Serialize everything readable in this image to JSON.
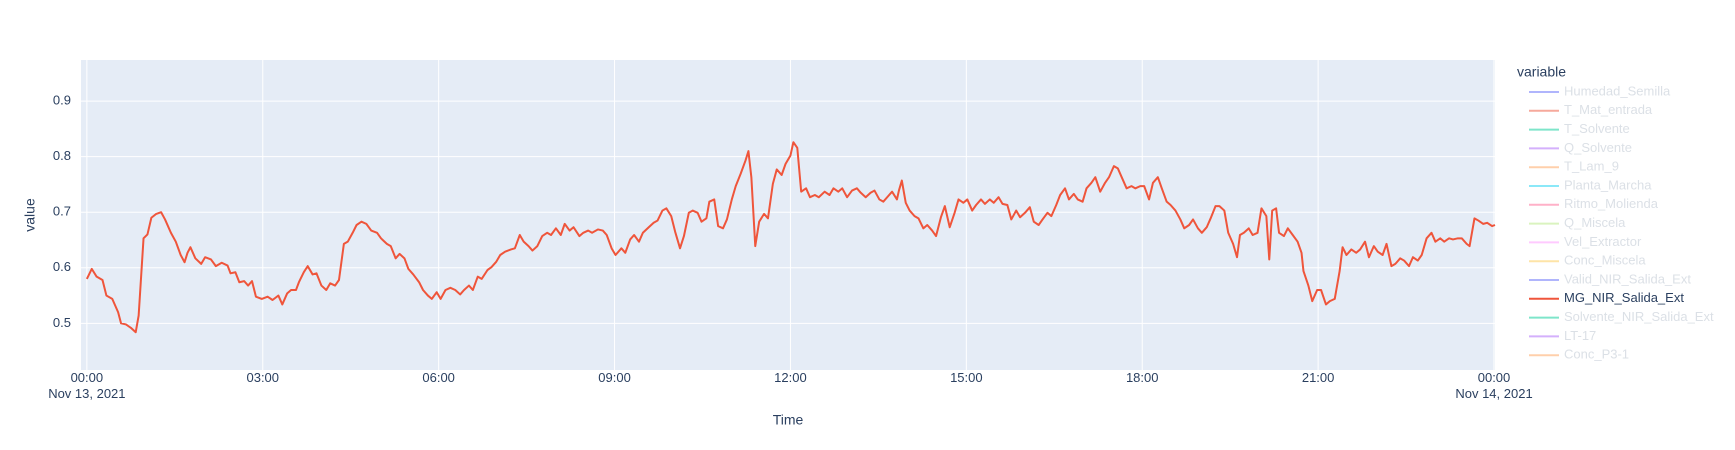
{
  "chart_data": {
    "type": "line",
    "x_label": "Time",
    "y_label": "value",
    "legend_title": "variable",
    "xlim": [
      "2021-11-12 23:54",
      "2021-11-14 00:01"
    ],
    "ylim": [
      0.416,
      0.974
    ],
    "yticks": [
      0.5,
      0.6,
      0.7,
      0.8,
      0.9
    ],
    "xticks": [
      {
        "value": "2021-11-13 00:00",
        "label": "00:00\nNov 13, 2021"
      },
      {
        "value": "2021-11-13 03:00",
        "label": "03:00"
      },
      {
        "value": "2021-11-13 06:00",
        "label": "06:00"
      },
      {
        "value": "2021-11-13 09:00",
        "label": "09:00"
      },
      {
        "value": "2021-11-13 12:00",
        "label": "12:00"
      },
      {
        "value": "2021-11-13 15:00",
        "label": "15:00"
      },
      {
        "value": "2021-11-13 18:00",
        "label": "18:00"
      },
      {
        "value": "2021-11-13 21:00",
        "label": "21:00"
      },
      {
        "value": "2021-11-14 00:00",
        "label": "00:00\nNov 14, 2021"
      }
    ],
    "grid": true,
    "x": [
      "2021-11-13 00:00",
      "2021-11-13 00:05",
      "2021-11-13 00:10",
      "2021-11-13 00:16",
      "2021-11-13 00:20",
      "2021-11-13 00:26",
      "2021-11-13 00:32",
      "2021-11-13 00:35",
      "2021-11-13 00:40",
      "2021-11-13 00:45",
      "2021-11-13 00:50",
      "2021-11-13 00:53",
      "2021-11-13 00:58",
      "2021-11-13 01:02",
      "2021-11-13 01:06",
      "2021-11-13 01:11",
      "2021-11-13 01:16",
      "2021-11-13 01:20",
      "2021-11-13 01:26",
      "2021-11-13 01:31",
      "2021-11-13 01:36",
      "2021-11-13 01:40",
      "2021-11-13 01:43",
      "2021-11-13 01:46",
      "2021-11-13 01:51",
      "2021-11-13 01:57",
      "2021-11-13 02:01",
      "2021-11-13 02:07",
      "2021-11-13 02:12",
      "2021-11-13 02:18",
      "2021-11-13 02:24",
      "2021-11-13 02:27",
      "2021-11-13 02:32",
      "2021-11-13 02:36",
      "2021-11-13 02:41",
      "2021-11-13 02:45",
      "2021-11-13 02:49",
      "2021-11-13 02:53",
      "2021-11-13 02:59",
      "2021-11-13 03:05",
      "2021-11-13 03:10",
      "2021-11-13 03:16",
      "2021-11-13 03:20",
      "2021-11-13 03:25",
      "2021-11-13 03:29",
      "2021-11-13 03:34",
      "2021-11-13 03:37",
      "2021-11-13 03:42",
      "2021-11-13 03:46",
      "2021-11-13 03:51",
      "2021-11-13 03:55",
      "2021-11-13 04:00",
      "2021-11-13 04:05",
      "2021-11-13 04:09",
      "2021-11-13 04:14",
      "2021-11-13 04:18",
      "2021-11-13 04:23",
      "2021-11-13 04:27",
      "2021-11-13 04:32",
      "2021-11-13 04:36",
      "2021-11-13 04:41",
      "2021-11-13 04:46",
      "2021-11-13 04:51",
      "2021-11-13 04:57",
      "2021-11-13 05:01",
      "2021-11-13 05:07",
      "2021-11-13 05:11",
      "2021-11-13 05:16",
      "2021-11-13 05:20",
      "2021-11-13 05:25",
      "2021-11-13 05:29",
      "2021-11-13 05:34",
      "2021-11-13 05:40",
      "2021-11-13 05:44",
      "2021-11-13 05:49",
      "2021-11-13 05:53",
      "2021-11-13 05:58",
      "2021-11-13 06:02",
      "2021-11-13 06:07",
      "2021-11-13 06:12",
      "2021-11-13 06:17",
      "2021-11-13 06:22",
      "2021-11-13 06:26",
      "2021-11-13 06:31",
      "2021-11-13 06:35",
      "2021-11-13 06:40",
      "2021-11-13 06:44",
      "2021-11-13 06:50",
      "2021-11-13 06:54",
      "2021-11-13 06:59",
      "2021-11-13 07:03",
      "2021-11-13 07:08",
      "2021-11-13 07:14",
      "2021-11-13 07:18",
      "2021-11-13 07:23",
      "2021-11-13 07:27",
      "2021-11-13 07:32",
      "2021-11-13 07:36",
      "2021-11-13 07:41",
      "2021-11-13 07:46",
      "2021-11-13 07:51",
      "2021-11-13 07:55",
      "2021-11-13 08:00",
      "2021-11-13 08:05",
      "2021-11-13 08:09",
      "2021-11-13 08:14",
      "2021-11-13 08:18",
      "2021-11-13 08:24",
      "2021-11-13 08:28",
      "2021-11-13 08:33",
      "2021-11-13 08:37",
      "2021-11-13 08:43",
      "2021-11-13 08:48",
      "2021-11-13 08:52",
      "2021-11-13 08:57",
      "2021-11-13 09:01",
      "2021-11-13 09:07",
      "2021-11-13 09:11",
      "2021-11-13 09:16",
      "2021-11-13 09:20",
      "2021-11-13 09:25",
      "2021-11-13 09:29",
      "2021-11-13 09:35",
      "2021-11-13 09:40",
      "2021-11-13 09:44",
      "2021-11-13 09:49",
      "2021-11-13 09:53",
      "2021-11-13 09:58",
      "2021-11-13 10:02",
      "2021-11-13 10:07",
      "2021-11-13 10:11",
      "2021-11-13 10:16",
      "2021-11-13 10:20",
      "2021-11-13 10:25",
      "2021-11-13 10:29",
      "2021-11-13 10:34",
      "2021-11-13 10:37",
      "2021-11-13 10:42",
      "2021-11-13 10:46",
      "2021-11-13 10:51",
      "2021-11-13 10:55",
      "2021-11-13 11:00",
      "2021-11-13 11:04",
      "2021-11-13 11:09",
      "2021-11-13 11:14",
      "2021-11-13 11:17",
      "2021-11-13 11:20",
      "2021-11-13 11:24",
      "2021-11-13 11:28",
      "2021-11-13 11:33",
      "2021-11-13 11:37",
      "2021-11-13 11:42",
      "2021-11-13 11:46",
      "2021-11-13 11:51",
      "2021-11-13 11:55",
      "2021-11-13 12:00",
      "2021-11-13 12:03",
      "2021-11-13 12:07",
      "2021-11-13 12:11",
      "2021-11-13 12:16",
      "2021-11-13 12:20",
      "2021-11-13 12:25",
      "2021-11-13 12:29",
      "2021-11-13 12:35",
      "2021-11-13 12:40",
      "2021-11-13 12:44",
      "2021-11-13 12:49",
      "2021-11-13 12:53",
      "2021-11-13 12:58",
      "2021-11-13 13:03",
      "2021-11-13 13:08",
      "2021-11-13 13:12",
      "2021-11-13 13:17",
      "2021-11-13 13:22",
      "2021-11-13 13:26",
      "2021-11-13 13:31",
      "2021-11-13 13:35",
      "2021-11-13 13:40",
      "2021-11-13 13:44",
      "2021-11-13 13:49",
      "2021-11-13 13:51",
      "2021-11-13 13:54",
      "2021-11-13 13:58",
      "2021-11-13 14:02",
      "2021-11-13 14:07",
      "2021-11-13 14:11",
      "2021-11-13 14:16",
      "2021-11-13 14:20",
      "2021-11-13 14:25",
      "2021-11-13 14:29",
      "2021-11-13 14:34",
      "2021-11-13 14:38",
      "2021-11-13 14:43",
      "2021-11-13 14:48",
      "2021-11-13 14:52",
      "2021-11-13 14:57",
      "2021-11-13 15:01",
      "2021-11-13 15:06",
      "2021-11-13 15:10",
      "2021-11-13 15:15",
      "2021-11-13 15:19",
      "2021-11-13 15:24",
      "2021-11-13 15:28",
      "2021-11-13 15:33",
      "2021-11-13 15:37",
      "2021-11-13 15:42",
      "2021-11-13 15:46",
      "2021-11-13 15:51",
      "2021-11-13 15:55",
      "2021-11-13 16:00",
      "2021-11-13 16:05",
      "2021-11-13 16:09",
      "2021-11-13 16:14",
      "2021-11-13 16:18",
      "2021-11-13 16:23",
      "2021-11-13 16:27",
      "2021-11-13 16:32",
      "2021-11-13 16:36",
      "2021-11-13 16:41",
      "2021-11-13 16:45",
      "2021-11-13 16:50",
      "2021-11-13 16:54",
      "2021-11-13 16:59",
      "2021-11-13 17:03",
      "2021-11-13 17:08",
      "2021-11-13 17:12",
      "2021-11-13 17:17",
      "2021-11-13 17:22",
      "2021-11-13 17:26",
      "2021-11-13 17:31",
      "2021-11-13 17:35",
      "2021-11-13 17:40",
      "2021-11-13 17:44",
      "2021-11-13 17:49",
      "2021-11-13 17:53",
      "2021-11-13 17:58",
      "2021-11-13 18:02",
      "2021-11-13 18:07",
      "2021-11-13 18:11",
      "2021-11-13 18:16",
      "2021-11-13 18:20",
      "2021-11-13 18:25",
      "2021-11-13 18:29",
      "2021-11-13 18:34",
      "2021-11-13 18:39",
      "2021-11-13 18:43",
      "2021-11-13 18:48",
      "2021-11-13 18:52",
      "2021-11-13 18:57",
      "2021-11-13 19:01",
      "2021-11-13 19:06",
      "2021-11-13 19:10",
      "2021-11-13 19:15",
      "2021-11-13 19:19",
      "2021-11-13 19:24",
      "2021-11-13 19:28",
      "2021-11-13 19:33",
      "2021-11-13 19:37",
      "2021-11-13 19:40",
      "2021-11-13 19:44",
      "2021-11-13 19:49",
      "2021-11-13 19:53",
      "2021-11-13 19:58",
      "2021-11-13 20:02",
      "2021-11-13 20:07",
      "2021-11-13 20:10",
      "2021-11-13 20:13",
      "2021-11-13 20:17",
      "2021-11-13 20:20",
      "2021-11-13 20:25",
      "2021-11-13 20:29",
      "2021-11-13 20:34",
      "2021-11-13 20:39",
      "2021-11-13 20:43",
      "2021-11-13 20:45",
      "2021-11-13 20:50",
      "2021-11-13 20:54",
      "2021-11-13 20:59",
      "2021-11-13 21:03",
      "2021-11-13 21:08",
      "2021-11-13 21:12",
      "2021-11-13 21:17",
      "2021-11-13 21:22",
      "2021-11-13 21:25",
      "2021-11-13 21:29",
      "2021-11-13 21:34",
      "2021-11-13 21:39",
      "2021-11-13 21:43",
      "2021-11-13 21:48",
      "2021-11-13 21:52",
      "2021-11-13 21:57",
      "2021-11-13 22:01",
      "2021-11-13 22:06",
      "2021-11-13 22:10",
      "2021-11-13 22:15",
      "2021-11-13 22:19",
      "2021-11-13 22:24",
      "2021-11-13 22:28",
      "2021-11-13 22:33",
      "2021-11-13 22:37",
      "2021-11-13 22:42",
      "2021-11-13 22:46",
      "2021-11-13 22:51",
      "2021-11-13 22:56",
      "2021-11-13 23:00",
      "2021-11-13 23:05",
      "2021-11-13 23:09",
      "2021-11-13 23:14",
      "2021-11-13 23:18",
      "2021-11-13 23:23",
      "2021-11-13 23:27",
      "2021-11-13 23:32",
      "2021-11-13 23:35",
      "2021-11-13 23:40",
      "2021-11-13 23:44",
      "2021-11-13 23:49",
      "2021-11-13 23:53",
      "2021-11-13 23:58",
      "2021-11-14 00:01"
    ],
    "series": [
      {
        "name": "Humedad_Semilla",
        "color": "#636efa",
        "visible": false
      },
      {
        "name": "T_Mat_entrada",
        "color": "#EF553B",
        "visible": false
      },
      {
        "name": "T_Solvente",
        "color": "#00cc96",
        "visible": false
      },
      {
        "name": "Q_Solvente",
        "color": "#ab63fa",
        "visible": false
      },
      {
        "name": "T_Lam_9",
        "color": "#FFA15A",
        "visible": false
      },
      {
        "name": "Planta_Marcha",
        "color": "#19d3f3",
        "visible": false
      },
      {
        "name": "Ritmo_Molienda",
        "color": "#FF6692",
        "visible": false
      },
      {
        "name": "Q_Miscela",
        "color": "#B6E880",
        "visible": false
      },
      {
        "name": "Vel_Extractor",
        "color": "#FF97FF",
        "visible": false
      },
      {
        "name": "Conc_Miscela",
        "color": "#FECB52",
        "visible": false
      },
      {
        "name": "Valid_NIR_Salida_Ext",
        "color": "#636efa",
        "visible": false
      },
      {
        "name": "MG_NIR_Salida_Ext",
        "color": "#EF553B",
        "visible": true,
        "values": [
          0.58,
          0.598,
          0.584,
          0.578,
          0.55,
          0.544,
          0.52,
          0.5,
          0.498,
          0.492,
          0.484,
          0.514,
          0.653,
          0.66,
          0.69,
          0.697,
          0.7,
          0.687,
          0.663,
          0.647,
          0.623,
          0.61,
          0.627,
          0.637,
          0.617,
          0.607,
          0.619,
          0.615,
          0.603,
          0.609,
          0.604,
          0.59,
          0.592,
          0.574,
          0.576,
          0.568,
          0.576,
          0.548,
          0.544,
          0.548,
          0.542,
          0.55,
          0.534,
          0.554,
          0.56,
          0.56,
          0.574,
          0.592,
          0.603,
          0.588,
          0.59,
          0.568,
          0.56,
          0.572,
          0.568,
          0.578,
          0.643,
          0.647,
          0.663,
          0.677,
          0.683,
          0.679,
          0.667,
          0.663,
          0.653,
          0.643,
          0.639,
          0.617,
          0.625,
          0.617,
          0.598,
          0.588,
          0.574,
          0.56,
          0.55,
          0.544,
          0.556,
          0.544,
          0.56,
          0.564,
          0.56,
          0.552,
          0.56,
          0.568,
          0.56,
          0.584,
          0.58,
          0.596,
          0.601,
          0.611,
          0.623,
          0.629,
          0.633,
          0.635,
          0.659,
          0.647,
          0.639,
          0.631,
          0.639,
          0.657,
          0.663,
          0.659,
          0.671,
          0.659,
          0.679,
          0.667,
          0.673,
          0.657,
          0.663,
          0.667,
          0.663,
          0.669,
          0.667,
          0.659,
          0.635,
          0.623,
          0.635,
          0.627,
          0.651,
          0.659,
          0.647,
          0.663,
          0.673,
          0.681,
          0.685,
          0.703,
          0.707,
          0.693,
          0.665,
          0.635,
          0.657,
          0.699,
          0.703,
          0.699,
          0.683,
          0.689,
          0.719,
          0.723,
          0.675,
          0.671,
          0.687,
          0.723,
          0.747,
          0.769,
          0.793,
          0.81,
          0.763,
          0.639,
          0.683,
          0.697,
          0.689,
          0.751,
          0.777,
          0.767,
          0.787,
          0.802,
          0.826,
          0.816,
          0.737,
          0.743,
          0.727,
          0.731,
          0.727,
          0.737,
          0.731,
          0.743,
          0.737,
          0.743,
          0.727,
          0.739,
          0.743,
          0.735,
          0.727,
          0.735,
          0.739,
          0.723,
          0.719,
          0.729,
          0.737,
          0.723,
          0.739,
          0.757,
          0.717,
          0.703,
          0.693,
          0.689,
          0.671,
          0.677,
          0.667,
          0.657,
          0.691,
          0.711,
          0.673,
          0.699,
          0.723,
          0.717,
          0.723,
          0.703,
          0.713,
          0.723,
          0.715,
          0.723,
          0.717,
          0.727,
          0.715,
          0.713,
          0.687,
          0.703,
          0.691,
          0.699,
          0.709,
          0.683,
          0.677,
          0.687,
          0.699,
          0.693,
          0.713,
          0.731,
          0.743,
          0.723,
          0.733,
          0.723,
          0.719,
          0.743,
          0.753,
          0.763,
          0.737,
          0.753,
          0.763,
          0.783,
          0.779,
          0.759,
          0.743,
          0.747,
          0.743,
          0.747,
          0.747,
          0.723,
          0.753,
          0.763,
          0.743,
          0.719,
          0.713,
          0.703,
          0.687,
          0.671,
          0.677,
          0.687,
          0.671,
          0.663,
          0.673,
          0.689,
          0.711,
          0.711,
          0.703,
          0.663,
          0.643,
          0.619,
          0.659,
          0.663,
          0.671,
          0.659,
          0.663,
          0.707,
          0.693,
          0.615,
          0.703,
          0.707,
          0.663,
          0.657,
          0.671,
          0.659,
          0.647,
          0.627,
          0.594,
          0.568,
          0.54,
          0.56,
          0.56,
          0.534,
          0.54,
          0.544,
          0.594,
          0.637,
          0.623,
          0.633,
          0.627,
          0.633,
          0.647,
          0.619,
          0.639,
          0.629,
          0.623,
          0.643,
          0.603,
          0.607,
          0.617,
          0.613,
          0.603,
          0.619,
          0.613,
          0.623,
          0.653,
          0.663,
          0.647,
          0.653,
          0.647,
          0.653,
          0.651,
          0.653,
          0.653,
          0.643,
          0.639,
          0.689,
          0.685,
          0.679,
          0.681,
          0.675,
          0.677
        ]
      },
      {
        "name": "Solvente_NIR_Salida_Ext",
        "color": "#00cc96",
        "visible": false
      },
      {
        "name": "LT-17",
        "color": "#ab63fa",
        "visible": false
      },
      {
        "name": "Conc_P3-1",
        "color": "#FFA15A",
        "visible": false
      }
    ]
  }
}
